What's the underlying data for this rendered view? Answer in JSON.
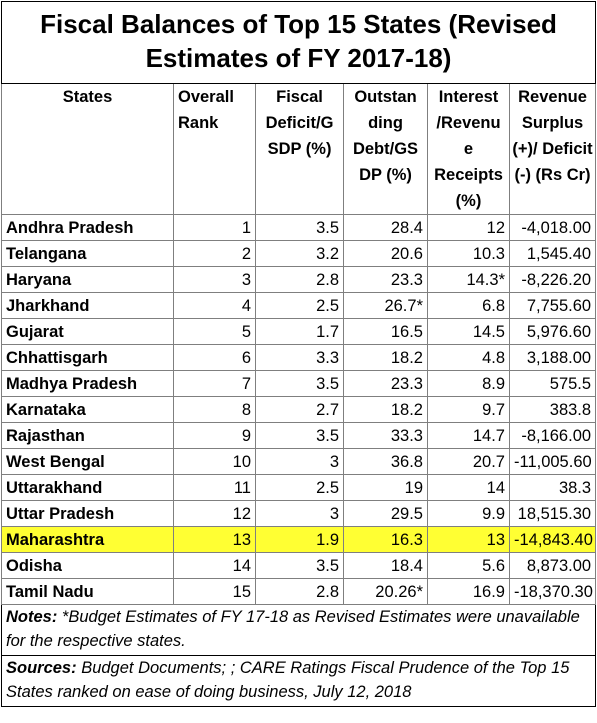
{
  "title": "Fiscal Balances of Top 15 States (Revised Estimates of FY 2017-18)",
  "headers": {
    "states": "States",
    "rank": "Overall Rank",
    "fiscal_deficit": "Fiscal Deficit/G SDP (%)",
    "debt": "Outstan ding Debt/GS DP (%)",
    "interest": "Interest /Revenu e Receipts (%)",
    "revenue": "Revenue Surplus (+)/ Deficit (-) (Rs Cr)"
  },
  "rows": [
    {
      "state": "Andhra Pradesh",
      "rank": "1",
      "fiscal_deficit": "3.5",
      "debt": "28.4",
      "interest": "12",
      "revenue": "-4,018.00"
    },
    {
      "state": "Telangana",
      "rank": "2",
      "fiscal_deficit": "3.2",
      "debt": "20.6",
      "interest": "10.3",
      "revenue": "1,545.40"
    },
    {
      "state": "Haryana",
      "rank": "3",
      "fiscal_deficit": "2.8",
      "debt": "23.3",
      "interest": "14.3*",
      "revenue": "-8,226.20"
    },
    {
      "state": "Jharkhand",
      "rank": "4",
      "fiscal_deficit": "2.5",
      "debt": "26.7*",
      "interest": "6.8",
      "revenue": "7,755.60"
    },
    {
      "state": "Gujarat",
      "rank": "5",
      "fiscal_deficit": "1.7",
      "debt": "16.5",
      "interest": "14.5",
      "revenue": "5,976.60"
    },
    {
      "state": "Chhattisgarh",
      "rank": "6",
      "fiscal_deficit": "3.3",
      "debt": "18.2",
      "interest": "4.8",
      "revenue": "3,188.00"
    },
    {
      "state": "Madhya Pradesh",
      "rank": "7",
      "fiscal_deficit": "3.5",
      "debt": "23.3",
      "interest": "8.9",
      "revenue": "575.5"
    },
    {
      "state": "Karnataka",
      "rank": "8",
      "fiscal_deficit": "2.7",
      "debt": "18.2",
      "interest": "9.7",
      "revenue": "383.8"
    },
    {
      "state": "Rajasthan",
      "rank": "9",
      "fiscal_deficit": "3.5",
      "debt": "33.3",
      "interest": "14.7",
      "revenue": "-8,166.00"
    },
    {
      "state": "West Bengal",
      "rank": "10",
      "fiscal_deficit": "3",
      "debt": "36.8",
      "interest": "20.7",
      "revenue": "-11,005.60"
    },
    {
      "state": "Uttarakhand",
      "rank": "11",
      "fiscal_deficit": "2.5",
      "debt": "19",
      "interest": "14",
      "revenue": "38.3"
    },
    {
      "state": "Uttar Pradesh",
      "rank": "12",
      "fiscal_deficit": "3",
      "debt": "29.5",
      "interest": "9.9",
      "revenue": "18,515.30"
    },
    {
      "state": "Maharashtra",
      "rank": "13",
      "fiscal_deficit": "1.9",
      "debt": "16.3",
      "interest": "13",
      "revenue": "-14,843.40",
      "highlight": true
    },
    {
      "state": "Odisha",
      "rank": "14",
      "fiscal_deficit": "3.5",
      "debt": "18.4",
      "interest": "5.6",
      "revenue": "8,873.00"
    },
    {
      "state": "Tamil Nadu",
      "rank": "15",
      "fiscal_deficit": "2.8",
      "debt": "20.26*",
      "interest": "16.9",
      "revenue": "-18,370.30"
    }
  ],
  "notes": {
    "label": "Notes:",
    "text": " *Budget Estimates of FY 17-18 as Revised Estimates were unavailable for the respective states."
  },
  "sources": {
    "label": "Sources:",
    "text": " Budget Documents; ; CARE Ratings Fiscal Prudence of the Top 15 States ranked on ease of doing business, July 12, 2018"
  },
  "colors": {
    "highlight": "#ffff33"
  }
}
